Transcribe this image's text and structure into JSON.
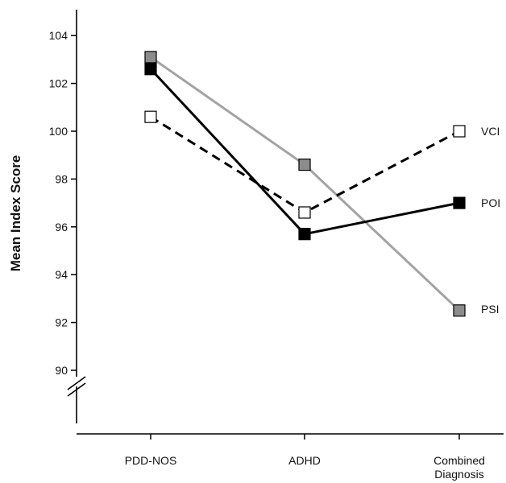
{
  "chart_data": {
    "type": "line",
    "title": "",
    "xlabel": "",
    "ylabel": "Mean Index Score",
    "categories": [
      "PDD-NOS",
      "ADHD",
      [
        "Combined",
        "Diagnosis"
      ]
    ],
    "y_ticks": [
      90,
      92,
      94,
      96,
      98,
      100,
      102,
      104
    ],
    "ylim": [
      88.3,
      104.8
    ],
    "axis_break": true,
    "grid": false,
    "legend": "labels at line ends (right)",
    "series": [
      {
        "name": "PSI",
        "values": [
          103.1,
          98.6,
          92.5
        ],
        "line_color": "#a3a3a3",
        "line_style": "solid",
        "marker_fill": "#8c8c8c"
      },
      {
        "name": "POI",
        "values": [
          102.6,
          95.7,
          97.0
        ],
        "line_color": "#000000",
        "line_style": "solid",
        "marker_fill": "#000000"
      },
      {
        "name": "VCI",
        "values": [
          100.6,
          96.6,
          100.0
        ],
        "line_color": "#000000",
        "line_style": "dashed",
        "marker_fill": "#ffffff"
      }
    ]
  }
}
